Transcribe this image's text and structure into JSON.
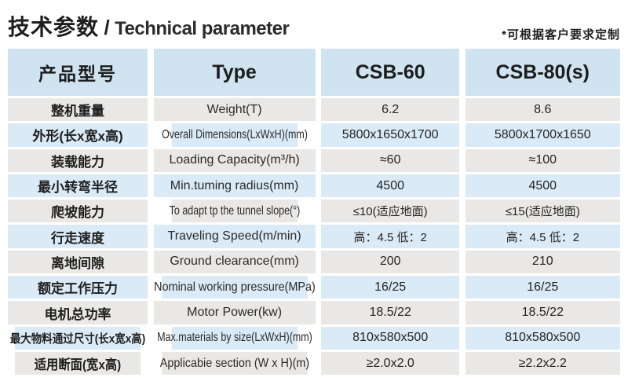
{
  "page": {
    "title_cn": "技术参数",
    "title_sep": "/",
    "title_en": "Technical parameter",
    "note": "*可根据客户要求定制"
  },
  "colors": {
    "header_bg": "#cfe3f1",
    "row_blue": "#daeaf6",
    "row_grey": "#e9e8e7",
    "text": "#2a2a2a"
  },
  "table": {
    "headers": {
      "product_model": "产品型号",
      "type": "Type",
      "csb60": "CSB-60",
      "csb80": "CSB-80(s)"
    },
    "rows": [
      {
        "cn": "整机重量",
        "en": "Weight(T)",
        "v1": "6.2",
        "v2": "8.6"
      },
      {
        "cn": "外形(长x宽x高)",
        "en": "Overall Dimensions(LxWxH)(mm)",
        "v1": "5800x1650x1700",
        "v2": "5800x1700x1650"
      },
      {
        "cn": "装载能力",
        "en": "Loading Capacity(m³/h)",
        "v1": "≈60",
        "v2": "≈100"
      },
      {
        "cn": "最小转弯半径",
        "en": "Min.tuming radius(mm)",
        "v1": "4500",
        "v2": "4500"
      },
      {
        "cn": "爬坡能力",
        "en": "To adapt tp the tunnel slope(°)",
        "v1": "≤10(适应地面)",
        "v2": "≤15(适应地面)"
      },
      {
        "cn": "行走速度",
        "en": "Traveling Speed(m/min)",
        "v1": "高：4.5 低：2",
        "v2": "高：4.5 低：2"
      },
      {
        "cn": "离地间隙",
        "en": "Ground clearance(mm)",
        "v1": "200",
        "v2": "210"
      },
      {
        "cn": "额定工作压力",
        "en": "Nominal working pressure(MPa)",
        "v1": "16/25",
        "v2": "16/25"
      },
      {
        "cn": "电机总功率",
        "en": "Motor Power(kw)",
        "v1": "18.5/22",
        "v2": "18.5/22"
      },
      {
        "cn": "最大物料通过尺寸(长x宽x高)",
        "en": "Max.materials by size(LxWxH)(mm)",
        "v1": "810x580x500",
        "v2": "810x580x500"
      },
      {
        "cn": "适用断面(宽x高)",
        "en": "Applicabie section (W x H)(m)",
        "v1": "≥2.0x2.0",
        "v2": "≥2.2x2.2"
      }
    ]
  }
}
